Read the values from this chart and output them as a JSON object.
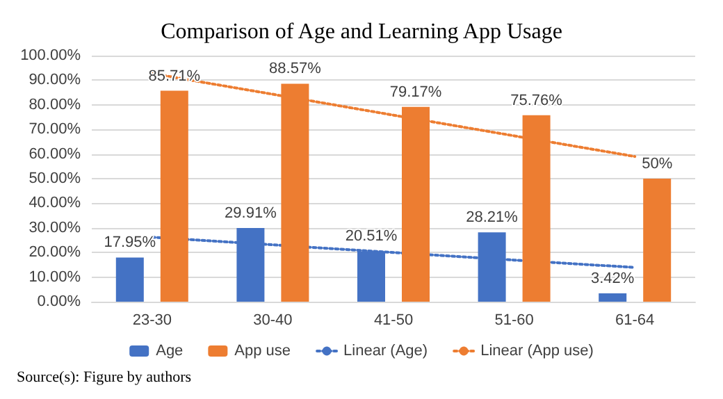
{
  "chart_data": {
    "type": "bar",
    "title": "Comparison of Age and Learning App Usage",
    "categories": [
      "23-30",
      "30-40",
      "41-50",
      "51-60",
      "61-64"
    ],
    "series": [
      {
        "name": "Age",
        "color": "#4472c4",
        "values": [
          17.95,
          29.91,
          20.51,
          28.21,
          3.42
        ],
        "value_labels": [
          "17.95%",
          "29.91%",
          "20.51%",
          "28.21%",
          "3.42%"
        ]
      },
      {
        "name": "App use",
        "color": "#ed7d31",
        "values": [
          85.71,
          88.57,
          79.17,
          75.76,
          50
        ],
        "value_labels": [
          "85.71%",
          "88.57%",
          "79.17%",
          "75.76%",
          "50%"
        ]
      },
      {
        "name": "Linear (Age)",
        "type": "line",
        "color": "#4472c4",
        "line_style": "dotted",
        "marker": "none",
        "values": [
          26.2,
          23.1,
          20.0,
          16.9,
          13.9
        ]
      },
      {
        "name": "Linear (App use)",
        "type": "line",
        "color": "#ed7d31",
        "line_style": "dotted",
        "marker": "none",
        "values": [
          92.7,
          84.3,
          75.8,
          67.4,
          59.0
        ]
      }
    ],
    "ylim": [
      0,
      100
    ],
    "yticks": [
      {
        "value": 0,
        "label": "0.00%"
      },
      {
        "value": 10,
        "label": "10.00%"
      },
      {
        "value": 20,
        "label": "20.00%"
      },
      {
        "value": 30,
        "label": "30.00%"
      },
      {
        "value": 40,
        "label": "40.00%"
      },
      {
        "value": 50,
        "label": "50.00%"
      },
      {
        "value": 60,
        "label": "60.00%"
      },
      {
        "value": 70,
        "label": "70.00%"
      },
      {
        "value": 80,
        "label": "80.00%"
      },
      {
        "value": 90,
        "label": "90.00%"
      },
      {
        "value": 100,
        "label": "100.00%"
      }
    ],
    "grid": "y",
    "legend": "bottom",
    "annotations": [
      "Source(s): Figure by authors"
    ]
  }
}
